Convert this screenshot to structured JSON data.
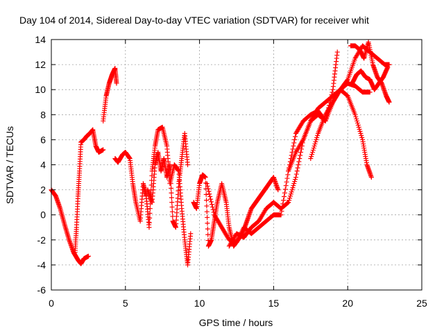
{
  "chart_data": {
    "type": "scatter",
    "title": "Day 104 of 2014, Sidereal Day-to-day VTEC variation (SDTVAR) for receiver whit",
    "xlabel": "GPS time / hours",
    "ylabel": "SDTVAR / TECUs",
    "xlim": [
      0,
      25
    ],
    "ylim": [
      -6,
      14
    ],
    "xticks": [
      "0",
      "5",
      "10",
      "15",
      "20",
      "25"
    ],
    "yticks": [
      "-6",
      "-4",
      "-2",
      "0",
      "2",
      "4",
      "6",
      "8",
      "10",
      "12",
      "14"
    ],
    "grid": true,
    "marker": "+",
    "color": "#ff0000",
    "series": [
      {
        "x": [
          0.0,
          0.3,
          0.6,
          0.9,
          1.2,
          1.5,
          1.8,
          2.0,
          2.2,
          2.5
        ],
        "y": [
          2.0,
          1.5,
          0.5,
          -0.8,
          -2.0,
          -3.0,
          -3.6,
          -3.9,
          -3.5,
          -3.3
        ]
      },
      {
        "x": [
          1.6,
          1.7,
          1.8,
          1.9,
          2.0,
          2.2,
          2.4,
          2.6,
          2.8,
          3.0,
          3.2,
          3.5
        ],
        "y": [
          -3.0,
          -1.0,
          1.5,
          3.5,
          5.8,
          6.0,
          6.3,
          6.5,
          6.8,
          5.5,
          5.0,
          5.2
        ]
      },
      {
        "x": [
          3.5,
          3.7,
          3.9,
          4.1,
          4.3,
          4.4
        ],
        "y": [
          7.5,
          9.5,
          10.5,
          11.2,
          11.7,
          10.5
        ]
      },
      {
        "x": [
          4.3,
          4.5,
          4.8,
          5.0,
          5.3,
          5.5,
          5.7,
          6.0,
          6.2,
          6.4,
          6.6,
          6.8,
          7.0,
          7.2,
          7.5,
          7.8,
          8.0,
          8.3,
          8.6,
          8.8,
          9.0,
          9.2,
          9.4
        ],
        "y": [
          4.5,
          4.2,
          4.8,
          5.0,
          4.5,
          2.5,
          1.0,
          -0.5,
          2.5,
          1.5,
          -1.0,
          3.5,
          5.5,
          6.8,
          7.0,
          5.5,
          2.5,
          4.0,
          3.5,
          0.5,
          -2.0,
          -4.0,
          -1.5
        ]
      },
      {
        "x": [
          6.5,
          6.8,
          7.0,
          7.2,
          7.4,
          7.6,
          7.8,
          8.0,
          8.2,
          8.4,
          8.6,
          8.8,
          9.0,
          9.2
        ],
        "y": [
          2.0,
          1.0,
          4.0,
          5.0,
          3.5,
          4.5,
          3.0,
          4.0,
          -0.5,
          -1.0,
          2.5,
          4.5,
          6.5,
          4.0
        ]
      },
      {
        "x": [
          9.6,
          9.8,
          10.0,
          10.2,
          10.4,
          10.6,
          10.8,
          11.0,
          11.2,
          11.5,
          11.8,
          12.0,
          12.3,
          12.6,
          12.9,
          13.2,
          13.5,
          13.8,
          14.1,
          14.4,
          14.7,
          15.0,
          15.3
        ],
        "y": [
          1.0,
          0.5,
          2.5,
          3.2,
          3.0,
          -2.5,
          -2.0,
          -0.5,
          1.0,
          2.5,
          1.0,
          -1.0,
          -2.5,
          -2.0,
          -1.5,
          -0.5,
          0.5,
          1.0,
          1.5,
          2.0,
          2.5,
          3.0,
          2.0
        ]
      },
      {
        "x": [
          10.5,
          11.0,
          11.5,
          12.0,
          12.5,
          13.0,
          13.5,
          14.0,
          14.5,
          15.0,
          15.5,
          16.0,
          16.5,
          17.0,
          17.5,
          18.0,
          18.5,
          19.0,
          19.5,
          20.0,
          20.5,
          21.0,
          21.5
        ],
        "y": [
          2.5,
          0.0,
          -1.0,
          -2.0,
          -2.2,
          -1.0,
          -1.5,
          -1.0,
          -0.5,
          0.0,
          0.0,
          3.5,
          6.5,
          7.5,
          8.0,
          8.3,
          7.5,
          9.0,
          10.0,
          10.5,
          10.3,
          9.8,
          9.8
        ]
      },
      {
        "x": [
          12.0,
          12.5,
          13.0,
          13.5,
          14.0,
          14.5,
          15.0,
          15.5,
          16.0,
          16.5,
          17.0,
          17.5,
          18.0,
          18.5,
          19.0,
          19.3
        ],
        "y": [
          -2.5,
          -1.5,
          -1.8,
          -1.0,
          -0.5,
          0.5,
          1.0,
          0.5,
          1.0,
          3.0,
          6.0,
          7.5,
          8.0,
          7.5,
          10.0,
          13.0
        ]
      },
      {
        "x": [
          16.0,
          16.5,
          17.0,
          17.5,
          18.0,
          18.5,
          19.0,
          19.5,
          20.0,
          20.5,
          21.0,
          21.3,
          21.6
        ],
        "y": [
          3.5,
          5.0,
          6.0,
          7.5,
          8.5,
          9.0,
          9.5,
          10.0,
          9.5,
          8.0,
          6.0,
          4.0,
          3.0
        ]
      },
      {
        "x": [
          17.5,
          18.0,
          18.5,
          19.0,
          19.5,
          20.0,
          20.5,
          21.0,
          21.5,
          22.0,
          22.5,
          22.8
        ],
        "y": [
          4.5,
          6.5,
          8.0,
          9.0,
          10.0,
          10.8,
          12.5,
          13.5,
          13.0,
          12.5,
          12.0,
          12.0
        ]
      },
      {
        "x": [
          20.2,
          20.5,
          20.8,
          21.1,
          21.4,
          21.7,
          22.0,
          22.3,
          22.6,
          22.8
        ],
        "y": [
          13.5,
          13.5,
          13.2,
          12.5,
          13.8,
          12.0,
          11.0,
          10.5,
          9.5,
          9.0
        ]
      },
      {
        "x": [
          20.3,
          20.6,
          20.9,
          21.2,
          21.5,
          21.8,
          22.1,
          22.4,
          22.7
        ],
        "y": [
          10.5,
          11.2,
          11.5,
          11.0,
          10.8,
          10.0,
          10.5,
          11.0,
          11.8
        ]
      }
    ]
  }
}
